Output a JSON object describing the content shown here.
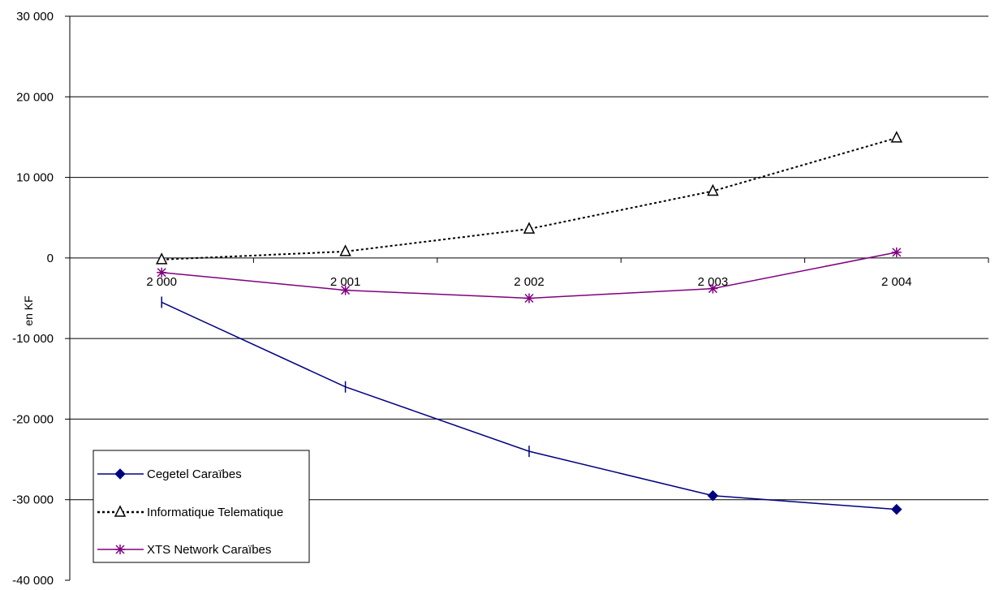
{
  "chart_data": {
    "type": "line",
    "title": "",
    "xlabel": "",
    "ylabel": "en KF",
    "categories": [
      "2 000",
      "2 001",
      "2 002",
      "2 003",
      "2 004"
    ],
    "ylim": [
      -40000,
      30000
    ],
    "yticks": [
      30000,
      20000,
      10000,
      0,
      -10000,
      -20000,
      -30000,
      -40000
    ],
    "ytick_labels": [
      "30 000",
      "20 000",
      "10 000",
      "0",
      "-10 000",
      "-20 000",
      "-30 000",
      "-40 000"
    ],
    "grid": true,
    "legend_position": "bottom-left",
    "series": [
      {
        "name": "Cegetel Caraïbes",
        "values": [
          -5500,
          -16000,
          -24000,
          -29500,
          -31200
        ],
        "color": "#000080",
        "marker": "diamond",
        "line_style": "solid"
      },
      {
        "name": "Informatique Telematique",
        "values": [
          -200,
          800,
          3600,
          8300,
          14900
        ],
        "color": "#000000",
        "marker": "triangle",
        "line_style": "dotted"
      },
      {
        "name": "XTS Network Caraïbes",
        "values": [
          -1800,
          -4000,
          -5000,
          -3800,
          700
        ],
        "color": "#800080",
        "marker": "asterisk",
        "line_style": "solid"
      }
    ]
  }
}
